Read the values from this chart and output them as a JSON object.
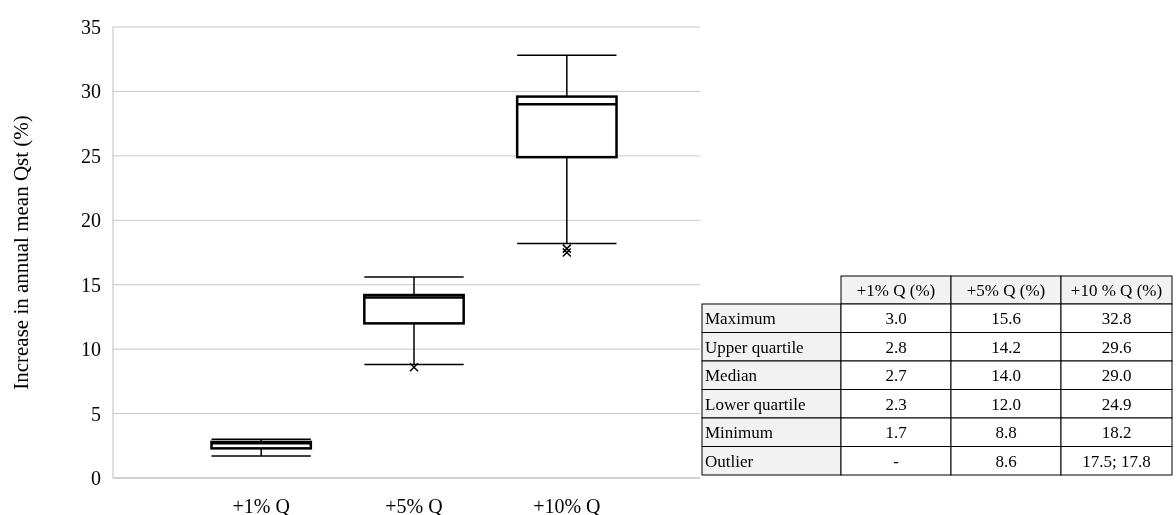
{
  "chart_data": {
    "type": "box",
    "ylabel": "Increase in annual mean Qst (%)",
    "categories": [
      "+1% Q",
      "+5% Q",
      "+10% Q"
    ],
    "boxes": [
      {
        "low": 1.7,
        "q1": 2.3,
        "median": 2.7,
        "q3": 2.8,
        "high": 3.0
      },
      {
        "low": 8.8,
        "q1": 12.0,
        "median": 14.0,
        "q3": 14.2,
        "high": 15.6,
        "outliers": [
          8.6
        ]
      },
      {
        "low": 18.2,
        "q1": 24.9,
        "median": 29.0,
        "q3": 29.6,
        "high": 32.8,
        "outliers": [
          17.5,
          17.8
        ]
      }
    ],
    "color": "#000000",
    "ylim": [
      0,
      35
    ],
    "yticks": [
      0,
      5,
      10,
      15,
      20,
      25,
      30,
      35
    ],
    "grid": "y",
    "marker": "cross",
    "annotations": [
      "+1% Q (%)",
      "+5% Q (%)",
      "+10 % Q (%)",
      "Maximum",
      "3.0",
      "15.6",
      "32.8",
      "Upper quartile",
      "2.8",
      "14.2",
      "29.6",
      "Median",
      "2.7",
      "14.0",
      "29.0",
      "Lower quartile",
      "2.3",
      "12.0",
      "24.9",
      "Minimum",
      "1.7",
      "8.8",
      "18.2",
      "Outlier",
      "-",
      "8.6",
      "17.5; 17.8"
    ]
  }
}
